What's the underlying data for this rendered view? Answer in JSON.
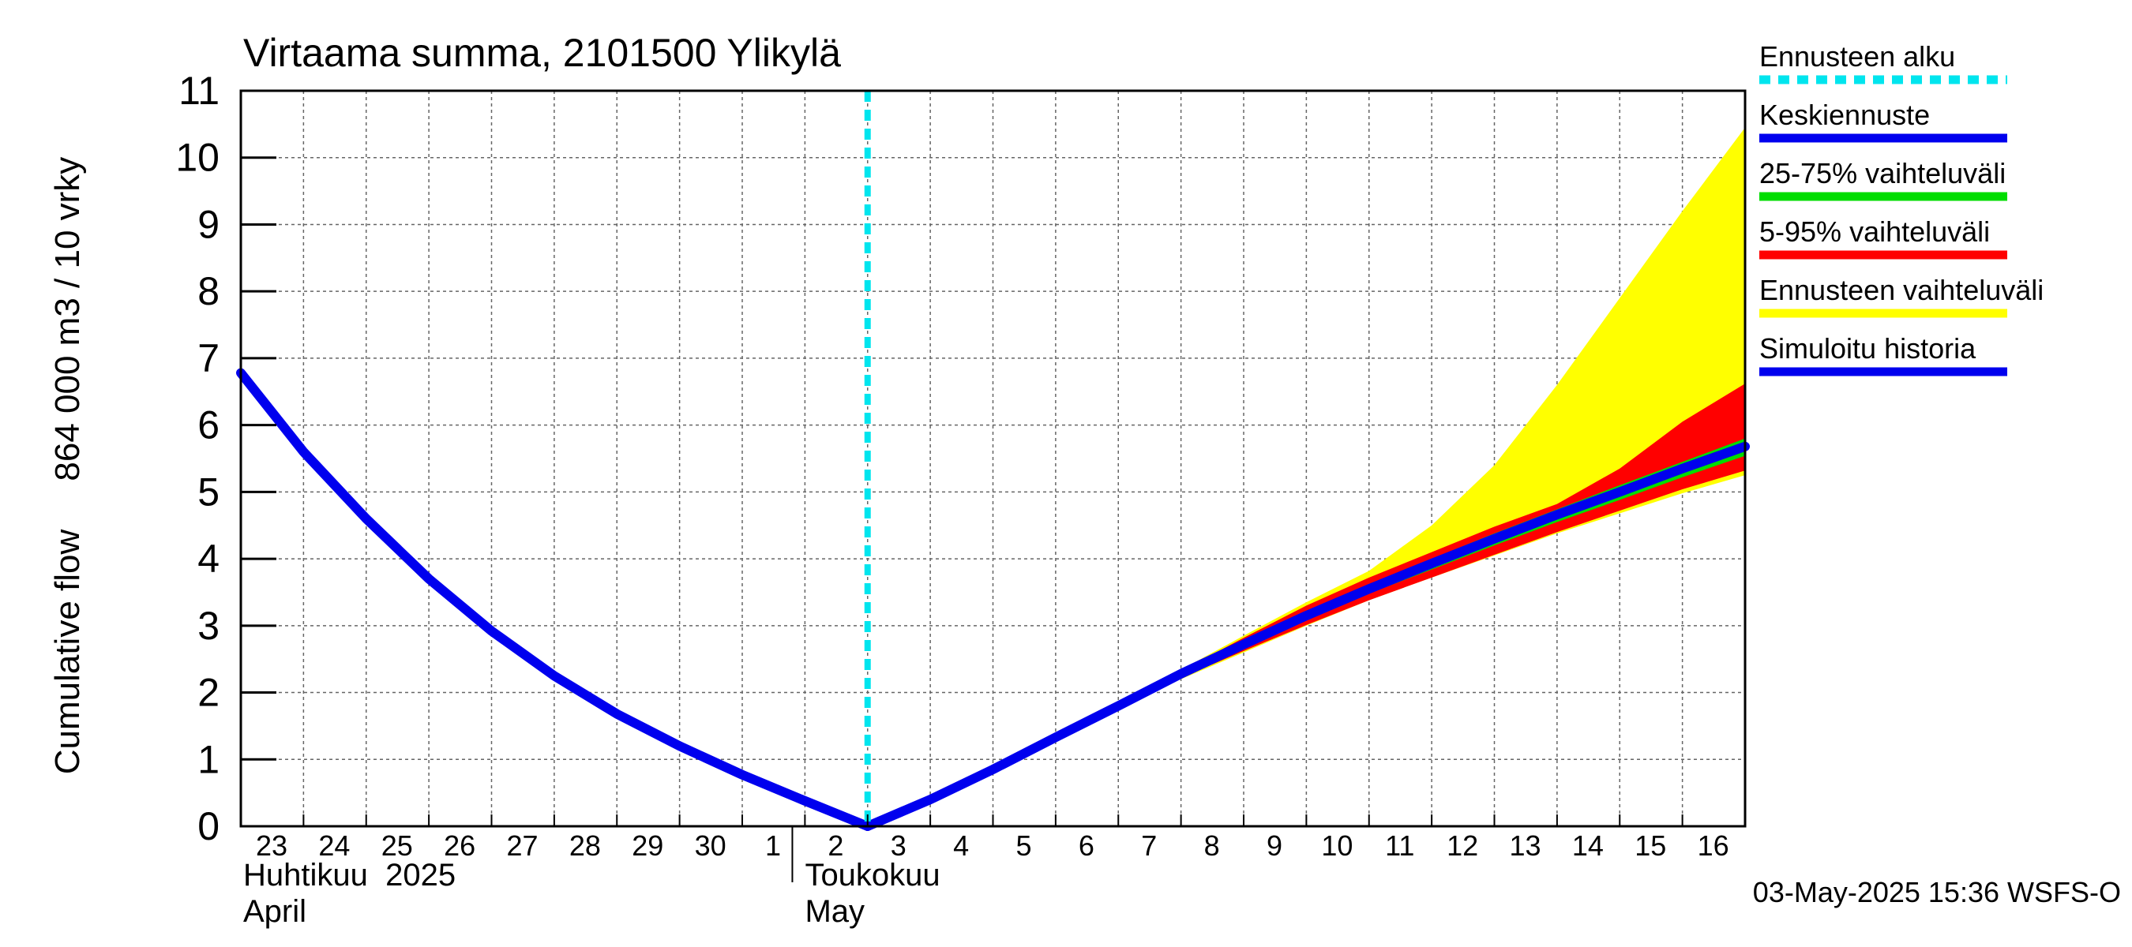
{
  "chart_data": {
    "type": "area",
    "title": "Virtaama summa, 2101500 Ylikylä",
    "ylabel": "Cumulative flow     864 000 m3 / 10 vrky",
    "xlabel": "",
    "ylim": [
      0,
      11
    ],
    "yticks": [
      "0",
      "1",
      "2",
      "3",
      "4",
      "5",
      "6",
      "7",
      "8",
      "9",
      "10",
      "11"
    ],
    "x_range_days": [
      0,
      24
    ],
    "day_labels": [
      "23",
      "24",
      "25",
      "26",
      "27",
      "28",
      "29",
      "30",
      "1",
      "2",
      "3",
      "4",
      "5",
      "6",
      "7",
      "8",
      "9",
      "10",
      "11",
      "12",
      "13",
      "14",
      "15",
      "16"
    ],
    "month_labels": [
      {
        "fi": "Huhtikuu  2025",
        "en": "April",
        "day": 0
      },
      {
        "fi": "Toukokuu",
        "en": "May",
        "day": 8.9
      }
    ],
    "forecast_start_day": 10,
    "series": [
      {
        "name": "Simuloitu historia",
        "color": "#0000ee",
        "x": [
          0,
          1,
          2,
          3,
          4,
          5,
          6,
          7,
          8,
          9,
          10
        ],
        "values": [
          6.78,
          5.6,
          4.6,
          3.7,
          2.92,
          2.25,
          1.68,
          1.2,
          0.77,
          0.38,
          0.0
        ]
      },
      {
        "name": "Keskiennuste",
        "color": "#0000ee",
        "x": [
          10,
          11,
          12,
          13,
          14,
          15,
          16,
          17,
          18,
          19,
          20,
          21,
          22,
          23,
          24
        ],
        "values": [
          0.0,
          0.4,
          0.85,
          1.33,
          1.8,
          2.28,
          2.72,
          3.15,
          3.55,
          3.93,
          4.3,
          4.66,
          5.0,
          5.35,
          5.68
        ]
      }
    ],
    "bands": [
      {
        "name": "Ennusteen vaihteluväli",
        "color": "#ffff00",
        "x": [
          14,
          15,
          16,
          17,
          18,
          19,
          20,
          21,
          22,
          23,
          24
        ],
        "upper": [
          1.8,
          2.34,
          2.85,
          3.35,
          3.82,
          4.5,
          5.4,
          6.6,
          7.9,
          9.2,
          10.45
        ],
        "lower": [
          1.8,
          2.2,
          2.6,
          3.0,
          3.38,
          3.72,
          4.05,
          4.38,
          4.68,
          4.98,
          5.25
        ]
      },
      {
        "name": "5-95% vaihteluväli",
        "color": "#ff0000",
        "x": [
          14,
          15,
          16,
          17,
          18,
          19,
          20,
          21,
          22,
          23,
          24
        ],
        "upper": [
          1.8,
          2.32,
          2.82,
          3.3,
          3.72,
          4.1,
          4.48,
          4.82,
          5.35,
          6.05,
          6.62
        ],
        "lower": [
          1.8,
          2.22,
          2.62,
          3.01,
          3.38,
          3.72,
          4.06,
          4.4,
          4.72,
          5.04,
          5.32
        ]
      },
      {
        "name": "25-75% vaihteluväli",
        "color": "#00dd00",
        "x": [
          14,
          15,
          16,
          17,
          18,
          19,
          20,
          21,
          22,
          23,
          24
        ],
        "upper": [
          1.8,
          2.3,
          2.78,
          3.22,
          3.62,
          4.0,
          4.38,
          4.74,
          5.1,
          5.45,
          5.8
        ],
        "lower": [
          1.8,
          2.25,
          2.68,
          3.1,
          3.48,
          3.84,
          4.2,
          4.55,
          4.88,
          5.22,
          5.54
        ]
      }
    ],
    "legend": {
      "position": "right",
      "items": [
        {
          "label": "Ennusteen alku",
          "color": "#00e5ee",
          "style": "dotted"
        },
        {
          "label": "Keskiennuste",
          "color": "#0000ee",
          "style": "solid"
        },
        {
          "label": "25-75% vaihteluväli",
          "color": "#00dd00",
          "style": "solid"
        },
        {
          "label": "5-95% vaihteluväli",
          "color": "#ff0000",
          "style": "solid"
        },
        {
          "label": "Ennusteen vaihteluväli",
          "color": "#ffff00",
          "style": "solid"
        },
        {
          "label": "Simuloitu historia",
          "color": "#0000ee",
          "style": "solid"
        }
      ]
    },
    "footer": "03-May-2025 15:36 WSFS-O",
    "grid": true
  }
}
